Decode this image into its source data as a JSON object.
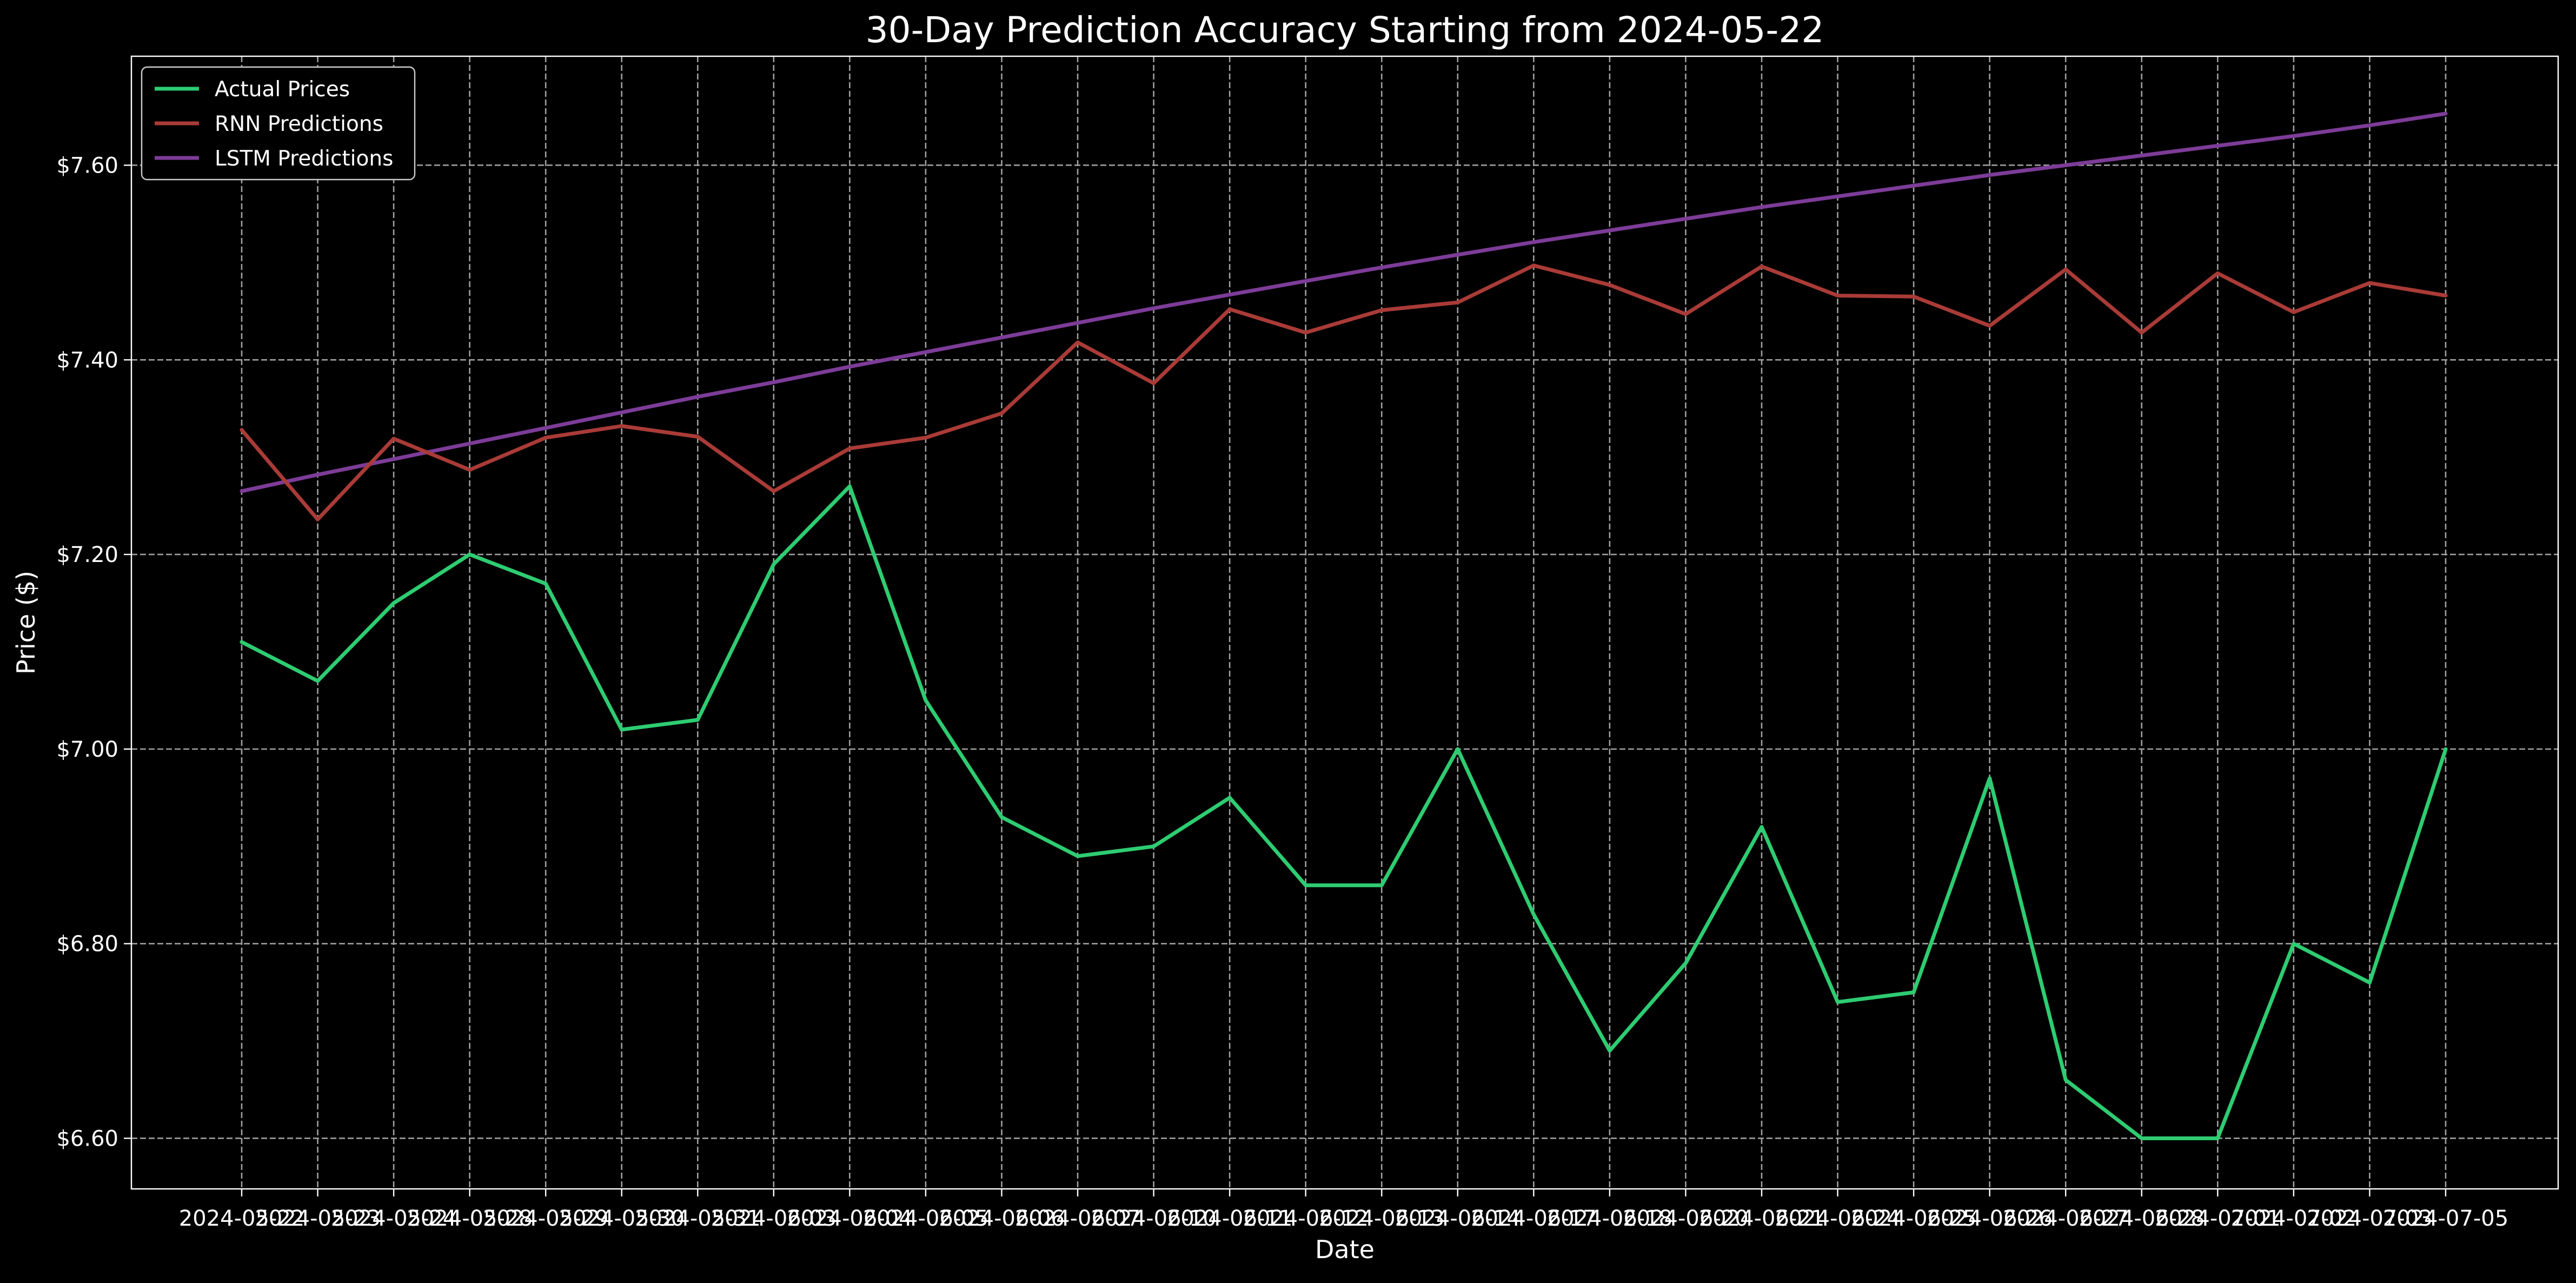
{
  "chart_data": {
    "type": "line",
    "title": "30-Day Prediction Accuracy Starting from 2024-05-22",
    "xlabel": "Date",
    "ylabel": "Price ($)",
    "ylim": [
      6.548,
      7.712
    ],
    "yticks": [
      6.6,
      6.8,
      7.0,
      7.2,
      7.4,
      7.6
    ],
    "ytick_labels": [
      "$6.60",
      "$6.80",
      "$7.00",
      "$7.20",
      "$7.40",
      "$7.60"
    ],
    "grid": true,
    "legend_position": "top-left",
    "x": [
      "2024-05-22",
      "2024-05-23",
      "2024-05-24",
      "2024-05-28",
      "2024-05-29",
      "2024-05-30",
      "2024-05-31",
      "2024-06-03",
      "2024-06-04",
      "2024-06-05",
      "2024-06-06",
      "2024-06-07",
      "2024-06-10",
      "2024-06-11",
      "2024-06-12",
      "2024-06-13",
      "2024-06-14",
      "2024-06-17",
      "2024-06-18",
      "2024-06-20",
      "2024-06-21",
      "2024-06-24",
      "2024-06-25",
      "2024-06-26",
      "2024-06-27",
      "2024-06-28",
      "2024-07-01",
      "2024-07-02",
      "2024-07-03",
      "2024-07-05"
    ],
    "series": [
      {
        "name": "Actual Prices",
        "color": "#2ecc71",
        "values": [
          7.11,
          7.07,
          7.15,
          7.2,
          7.17,
          7.02,
          7.03,
          7.19,
          7.27,
          7.05,
          6.93,
          6.89,
          6.9,
          6.95,
          6.86,
          6.86,
          7.0,
          6.83,
          6.69,
          6.78,
          6.92,
          6.74,
          6.75,
          6.97,
          6.66,
          6.6,
          6.6,
          6.8,
          6.76,
          7.0
        ]
      },
      {
        "name": "RNN Predictions",
        "color": "#a93b37",
        "values": [
          7.328,
          7.236,
          7.319,
          7.287,
          7.32,
          7.332,
          7.321,
          7.265,
          7.309,
          7.32,
          7.345,
          7.418,
          7.376,
          7.452,
          7.428,
          7.451,
          7.459,
          7.497,
          7.477,
          7.447,
          7.496,
          7.466,
          7.465,
          7.435,
          7.493,
          7.428,
          7.489,
          7.449,
          7.479,
          7.466
        ]
      },
      {
        "name": "LSTM Predictions",
        "color": "#7d3c98",
        "values": [
          7.265,
          7.282,
          7.298,
          7.314,
          7.33,
          7.346,
          7.362,
          7.377,
          7.393,
          7.408,
          7.423,
          7.438,
          7.453,
          7.467,
          7.481,
          7.495,
          7.508,
          7.521,
          7.533,
          7.545,
          7.557,
          7.568,
          7.579,
          7.59,
          7.6,
          7.61,
          7.62,
          7.63,
          7.641,
          7.653
        ]
      }
    ]
  }
}
